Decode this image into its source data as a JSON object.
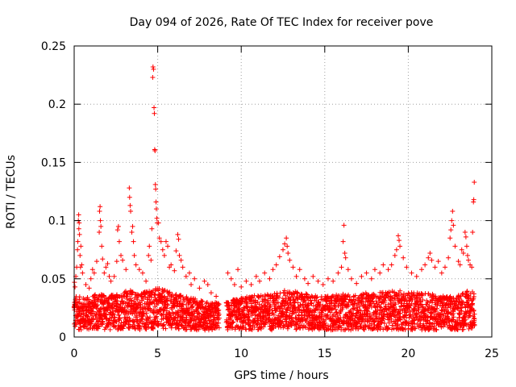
{
  "chart_data": {
    "type": "scatter",
    "title": "Day 094 of 2026, Rate Of TEC Index for receiver pove",
    "xlabel": "GPS time / hours",
    "ylabel": "ROTI / TECUs",
    "xlim": [
      0,
      25
    ],
    "ylim": [
      0,
      0.25
    ],
    "xticks": [
      0,
      5,
      10,
      15,
      20,
      25
    ],
    "yticks": [
      0,
      0.05,
      0.1,
      0.15,
      0.2,
      0.25
    ],
    "xtick_labels": [
      "0",
      "5",
      "10",
      "15",
      "20",
      "25"
    ],
    "ytick_labels": [
      "0",
      "0.05",
      "0.1",
      "0.15",
      "0.2",
      "0.25"
    ],
    "grid": true,
    "marker": "plus",
    "color": "#ff0000",
    "data_gap_hours": [
      8.7,
      9.1
    ],
    "series": [
      {
        "points": [
          [
            0.02,
            0.047
          ],
          [
            0.05,
            0.043
          ],
          [
            0.1,
            0.052
          ],
          [
            0.15,
            0.06
          ],
          [
            0.2,
            0.075
          ],
          [
            0.22,
            0.082
          ],
          [
            0.25,
            0.1
          ],
          [
            0.27,
            0.105
          ],
          [
            0.28,
            0.093
          ],
          [
            0.3,
            0.098
          ],
          [
            0.32,
            0.088
          ],
          [
            0.35,
            0.07
          ],
          [
            0.38,
            0.06
          ],
          [
            0.4,
            0.078
          ],
          [
            0.45,
            0.062
          ],
          [
            0.5,
            0.055
          ],
          [
            0.7,
            0.045
          ],
          [
            0.9,
            0.042
          ],
          [
            1.0,
            0.05
          ],
          [
            1.1,
            0.058
          ],
          [
            1.2,
            0.055
          ],
          [
            1.35,
            0.065
          ],
          [
            1.5,
            0.09
          ],
          [
            1.52,
            0.108
          ],
          [
            1.55,
            0.112
          ],
          [
            1.57,
            0.1
          ],
          [
            1.6,
            0.095
          ],
          [
            1.65,
            0.078
          ],
          [
            1.7,
            0.067
          ],
          [
            1.8,
            0.055
          ],
          [
            1.9,
            0.06
          ],
          [
            2.0,
            0.063
          ],
          [
            2.1,
            0.052
          ],
          [
            2.2,
            0.048
          ],
          [
            2.4,
            0.052
          ],
          [
            2.55,
            0.065
          ],
          [
            2.6,
            0.092
          ],
          [
            2.65,
            0.095
          ],
          [
            2.7,
            0.082
          ],
          [
            2.8,
            0.07
          ],
          [
            2.9,
            0.066
          ],
          [
            3.1,
            0.058
          ],
          [
            3.3,
            0.128
          ],
          [
            3.32,
            0.12
          ],
          [
            3.35,
            0.113
          ],
          [
            3.38,
            0.108
          ],
          [
            3.45,
            0.09
          ],
          [
            3.5,
            0.095
          ],
          [
            3.55,
            0.082
          ],
          [
            3.6,
            0.07
          ],
          [
            3.7,
            0.062
          ],
          [
            3.9,
            0.058
          ],
          [
            4.1,
            0.055
          ],
          [
            4.3,
            0.048
          ],
          [
            4.45,
            0.07
          ],
          [
            4.5,
            0.078
          ],
          [
            4.6,
            0.066
          ],
          [
            4.65,
            0.093
          ],
          [
            4.7,
            0.223
          ],
          [
            4.72,
            0.232
          ],
          [
            4.75,
            0.23
          ],
          [
            4.78,
            0.197
          ],
          [
            4.8,
            0.192
          ],
          [
            4.82,
            0.161
          ],
          [
            4.84,
            0.16
          ],
          [
            4.86,
            0.131
          ],
          [
            4.88,
            0.127
          ],
          [
            4.9,
            0.116
          ],
          [
            4.92,
            0.11
          ],
          [
            4.95,
            0.102
          ],
          [
            4.97,
            0.098
          ],
          [
            5.05,
            0.098
          ],
          [
            5.1,
            0.085
          ],
          [
            5.2,
            0.082
          ],
          [
            5.3,
            0.075
          ],
          [
            5.4,
            0.07
          ],
          [
            5.5,
            0.082
          ],
          [
            5.6,
            0.078
          ],
          [
            5.7,
            0.06
          ],
          [
            5.8,
            0.062
          ],
          [
            6.0,
            0.057
          ],
          [
            6.1,
            0.074
          ],
          [
            6.2,
            0.088
          ],
          [
            6.25,
            0.084
          ],
          [
            6.3,
            0.07
          ],
          [
            6.4,
            0.066
          ],
          [
            6.5,
            0.06
          ],
          [
            6.7,
            0.052
          ],
          [
            6.9,
            0.055
          ],
          [
            7.0,
            0.045
          ],
          [
            7.2,
            0.05
          ],
          [
            7.5,
            0.042
          ],
          [
            7.8,
            0.048
          ],
          [
            8.0,
            0.045
          ],
          [
            8.2,
            0.038
          ],
          [
            8.5,
            0.035
          ],
          [
            9.2,
            0.055
          ],
          [
            9.4,
            0.05
          ],
          [
            9.6,
            0.045
          ],
          [
            9.8,
            0.058
          ],
          [
            10.0,
            0.043
          ],
          [
            10.3,
            0.048
          ],
          [
            10.6,
            0.045
          ],
          [
            10.9,
            0.052
          ],
          [
            11.1,
            0.048
          ],
          [
            11.4,
            0.055
          ],
          [
            11.7,
            0.05
          ],
          [
            11.9,
            0.058
          ],
          [
            12.1,
            0.062
          ],
          [
            12.3,
            0.069
          ],
          [
            12.5,
            0.075
          ],
          [
            12.6,
            0.08
          ],
          [
            12.7,
            0.085
          ],
          [
            12.75,
            0.078
          ],
          [
            12.8,
            0.072
          ],
          [
            12.9,
            0.066
          ],
          [
            13.1,
            0.06
          ],
          [
            13.3,
            0.052
          ],
          [
            13.5,
            0.058
          ],
          [
            13.8,
            0.05
          ],
          [
            14.0,
            0.046
          ],
          [
            14.3,
            0.052
          ],
          [
            14.6,
            0.048
          ],
          [
            14.9,
            0.045
          ],
          [
            15.2,
            0.05
          ],
          [
            15.5,
            0.048
          ],
          [
            15.8,
            0.055
          ],
          [
            16.0,
            0.06
          ],
          [
            16.1,
            0.082
          ],
          [
            16.15,
            0.096
          ],
          [
            16.2,
            0.072
          ],
          [
            16.25,
            0.068
          ],
          [
            16.4,
            0.058
          ],
          [
            16.6,
            0.05
          ],
          [
            16.9,
            0.046
          ],
          [
            17.2,
            0.052
          ],
          [
            17.5,
            0.055
          ],
          [
            17.8,
            0.05
          ],
          [
            18.0,
            0.058
          ],
          [
            18.3,
            0.055
          ],
          [
            18.5,
            0.062
          ],
          [
            18.8,
            0.058
          ],
          [
            19.0,
            0.062
          ],
          [
            19.2,
            0.07
          ],
          [
            19.3,
            0.075
          ],
          [
            19.4,
            0.087
          ],
          [
            19.45,
            0.083
          ],
          [
            19.5,
            0.078
          ],
          [
            19.7,
            0.068
          ],
          [
            19.9,
            0.06
          ],
          [
            20.2,
            0.055
          ],
          [
            20.5,
            0.052
          ],
          [
            20.8,
            0.058
          ],
          [
            21.0,
            0.062
          ],
          [
            21.2,
            0.068
          ],
          [
            21.3,
            0.072
          ],
          [
            21.4,
            0.066
          ],
          [
            21.6,
            0.06
          ],
          [
            21.8,
            0.065
          ],
          [
            22.0,
            0.055
          ],
          [
            22.2,
            0.06
          ],
          [
            22.4,
            0.068
          ],
          [
            22.5,
            0.085
          ],
          [
            22.55,
            0.092
          ],
          [
            22.6,
            0.1
          ],
          [
            22.65,
            0.108
          ],
          [
            22.7,
            0.096
          ],
          [
            22.8,
            0.078
          ],
          [
            23.0,
            0.065
          ],
          [
            23.1,
            0.062
          ],
          [
            23.2,
            0.075
          ],
          [
            23.3,
            0.072
          ],
          [
            23.4,
            0.09
          ],
          [
            23.45,
            0.086
          ],
          [
            23.5,
            0.078
          ],
          [
            23.55,
            0.07
          ],
          [
            23.6,
            0.066
          ],
          [
            23.7,
            0.062
          ],
          [
            23.8,
            0.06
          ],
          [
            23.85,
            0.09
          ],
          [
            23.9,
            0.116
          ],
          [
            23.92,
            0.118
          ],
          [
            23.95,
            0.133
          ]
        ],
        "band": [
          [
            0.0,
            0.006,
            0.036
          ],
          [
            0.5,
            0.006,
            0.034
          ],
          [
            1.0,
            0.006,
            0.035
          ],
          [
            1.5,
            0.007,
            0.038
          ],
          [
            2.0,
            0.006,
            0.036
          ],
          [
            2.5,
            0.006,
            0.037
          ],
          [
            3.0,
            0.007,
            0.04
          ],
          [
            3.5,
            0.007,
            0.04
          ],
          [
            4.0,
            0.006,
            0.038
          ],
          [
            4.5,
            0.006,
            0.042
          ],
          [
            5.0,
            0.007,
            0.042
          ],
          [
            5.5,
            0.007,
            0.04
          ],
          [
            6.0,
            0.006,
            0.038
          ],
          [
            6.5,
            0.006,
            0.036
          ],
          [
            7.0,
            0.006,
            0.034
          ],
          [
            7.5,
            0.006,
            0.032
          ],
          [
            8.0,
            0.006,
            0.03
          ],
          [
            8.6,
            0.006,
            0.03
          ],
          [
            9.1,
            0.006,
            0.03
          ],
          [
            9.5,
            0.006,
            0.032
          ],
          [
            10.0,
            0.006,
            0.034
          ],
          [
            10.5,
            0.006,
            0.035
          ],
          [
            11.0,
            0.006,
            0.036
          ],
          [
            11.5,
            0.006,
            0.037
          ],
          [
            12.0,
            0.006,
            0.038
          ],
          [
            12.5,
            0.007,
            0.04
          ],
          [
            13.0,
            0.007,
            0.04
          ],
          [
            13.5,
            0.006,
            0.038
          ],
          [
            14.0,
            0.006,
            0.037
          ],
          [
            14.5,
            0.006,
            0.036
          ],
          [
            15.0,
            0.006,
            0.035
          ],
          [
            15.5,
            0.006,
            0.036
          ],
          [
            16.0,
            0.006,
            0.037
          ],
          [
            16.5,
            0.006,
            0.036
          ],
          [
            17.0,
            0.006,
            0.037
          ],
          [
            17.5,
            0.006,
            0.038
          ],
          [
            18.0,
            0.006,
            0.038
          ],
          [
            18.5,
            0.006,
            0.039
          ],
          [
            19.0,
            0.006,
            0.04
          ],
          [
            19.5,
            0.006,
            0.04
          ],
          [
            20.0,
            0.006,
            0.039
          ],
          [
            20.5,
            0.006,
            0.038
          ],
          [
            21.0,
            0.006,
            0.038
          ],
          [
            21.5,
            0.006,
            0.037
          ],
          [
            22.0,
            0.006,
            0.036
          ],
          [
            22.5,
            0.006,
            0.035
          ],
          [
            23.0,
            0.006,
            0.036
          ],
          [
            23.5,
            0.006,
            0.042
          ],
          [
            24.0,
            0.006,
            0.038
          ]
        ]
      }
    ]
  }
}
